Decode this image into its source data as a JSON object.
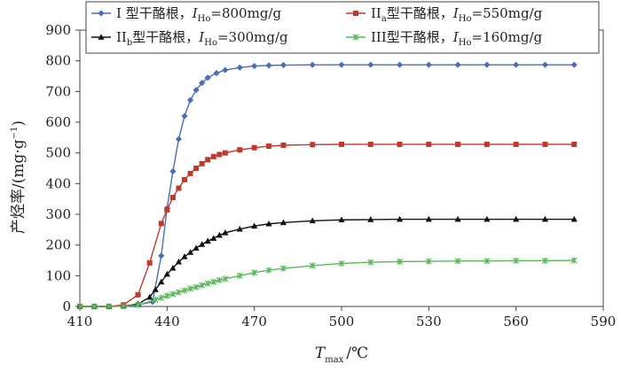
{
  "chart_data": {
    "type": "line",
    "title": "",
    "xlabel": {
      "main": "T",
      "sub": "max",
      "unit": "/℃"
    },
    "ylabel": {
      "text": "产烃率/(mg·g",
      "sup": "−1",
      "close": ")"
    },
    "xlim": [
      410,
      590
    ],
    "ylim": [
      0,
      900
    ],
    "xticks": [
      410,
      440,
      470,
      500,
      530,
      560,
      590
    ],
    "yticks": [
      0,
      100,
      200,
      300,
      400,
      500,
      600,
      700,
      800,
      900
    ],
    "grid": false,
    "legend_position": "top",
    "series": [
      {
        "name": "I 型干酪根，I_Ho=800mg/g",
        "legend": {
          "prefix": "I 型干酪根，",
          "var": "I",
          "sub": "Ho",
          "suffix": "=800mg/g"
        },
        "color": "#4a6fb5",
        "marker": "diamond",
        "x": [
          410,
          415,
          420,
          425,
          430,
          435,
          438,
          440,
          442,
          444,
          446,
          448,
          450,
          452,
          454,
          457,
          460,
          465,
          470,
          475,
          480,
          490,
          500,
          510,
          520,
          530,
          540,
          550,
          560,
          570,
          580
        ],
        "y": [
          0,
          0,
          0,
          2,
          5,
          15,
          165,
          320,
          440,
          545,
          620,
          672,
          705,
          728,
          745,
          760,
          770,
          778,
          783,
          785,
          786,
          787,
          787,
          787,
          787,
          787,
          787,
          787,
          787,
          787,
          787
        ]
      },
      {
        "name": "IIa型干酪根，I_Ho=550mg/g",
        "legend": {
          "prefix": "II",
          "prefix_sub": "a",
          "mid": "型干酪根，",
          "var": "I",
          "sub": "Ho",
          "suffix": "=550mg/g"
        },
        "color": "#c0392b",
        "marker": "square",
        "x": [
          410,
          415,
          420,
          425,
          430,
          434,
          438,
          440,
          442,
          444,
          446,
          448,
          450,
          452,
          454,
          456,
          458,
          460,
          465,
          470,
          475,
          480,
          490,
          500,
          510,
          520,
          530,
          540,
          550,
          560,
          570,
          580
        ],
        "y": [
          0,
          0,
          0,
          5,
          38,
          142,
          270,
          315,
          355,
          385,
          413,
          433,
          450,
          465,
          478,
          488,
          495,
          500,
          510,
          517,
          522,
          525,
          527,
          528,
          528,
          528,
          528,
          528,
          528,
          528,
          528,
          528
        ]
      },
      {
        "name": "IIb型干酪根，I_Ho=300mg/g",
        "legend": {
          "prefix": "II",
          "prefix_sub": "b",
          "mid": "型干酪根，",
          "var": "I",
          "sub": "Ho",
          "suffix": "=300mg/g"
        },
        "color": "#111111",
        "marker": "triangle",
        "x": [
          410,
          415,
          420,
          425,
          430,
          434,
          436,
          438,
          440,
          442,
          444,
          446,
          448,
          450,
          452,
          454,
          456,
          458,
          460,
          465,
          470,
          475,
          480,
          490,
          500,
          510,
          520,
          530,
          540,
          550,
          560,
          570,
          580
        ],
        "y": [
          0,
          0,
          0,
          1,
          8,
          30,
          55,
          80,
          105,
          125,
          145,
          162,
          176,
          190,
          202,
          213,
          222,
          232,
          240,
          252,
          262,
          269,
          273,
          279,
          282,
          283,
          284,
          284,
          284,
          284,
          284,
          284,
          284
        ]
      },
      {
        "name": "III型干酪根，I_Ho=160mg/g",
        "legend": {
          "prefix": "III型干酪根，",
          "var": "I",
          "sub": "Ho",
          "suffix": "=160mg/g"
        },
        "color": "#5cb85c",
        "marker": "x",
        "x": [
          410,
          415,
          420,
          425,
          430,
          436,
          438,
          440,
          442,
          444,
          446,
          448,
          450,
          452,
          454,
          456,
          458,
          460,
          465,
          470,
          475,
          480,
          490,
          500,
          510,
          520,
          530,
          540,
          550,
          560,
          570,
          580
        ],
        "y": [
          0,
          0,
          0,
          1,
          5,
          22,
          28,
          35,
          40,
          46,
          52,
          58,
          63,
          69,
          75,
          80,
          86,
          90,
          100,
          110,
          118,
          124,
          133,
          140,
          144,
          146,
          147,
          148,
          148,
          149,
          149,
          150
        ]
      }
    ]
  }
}
